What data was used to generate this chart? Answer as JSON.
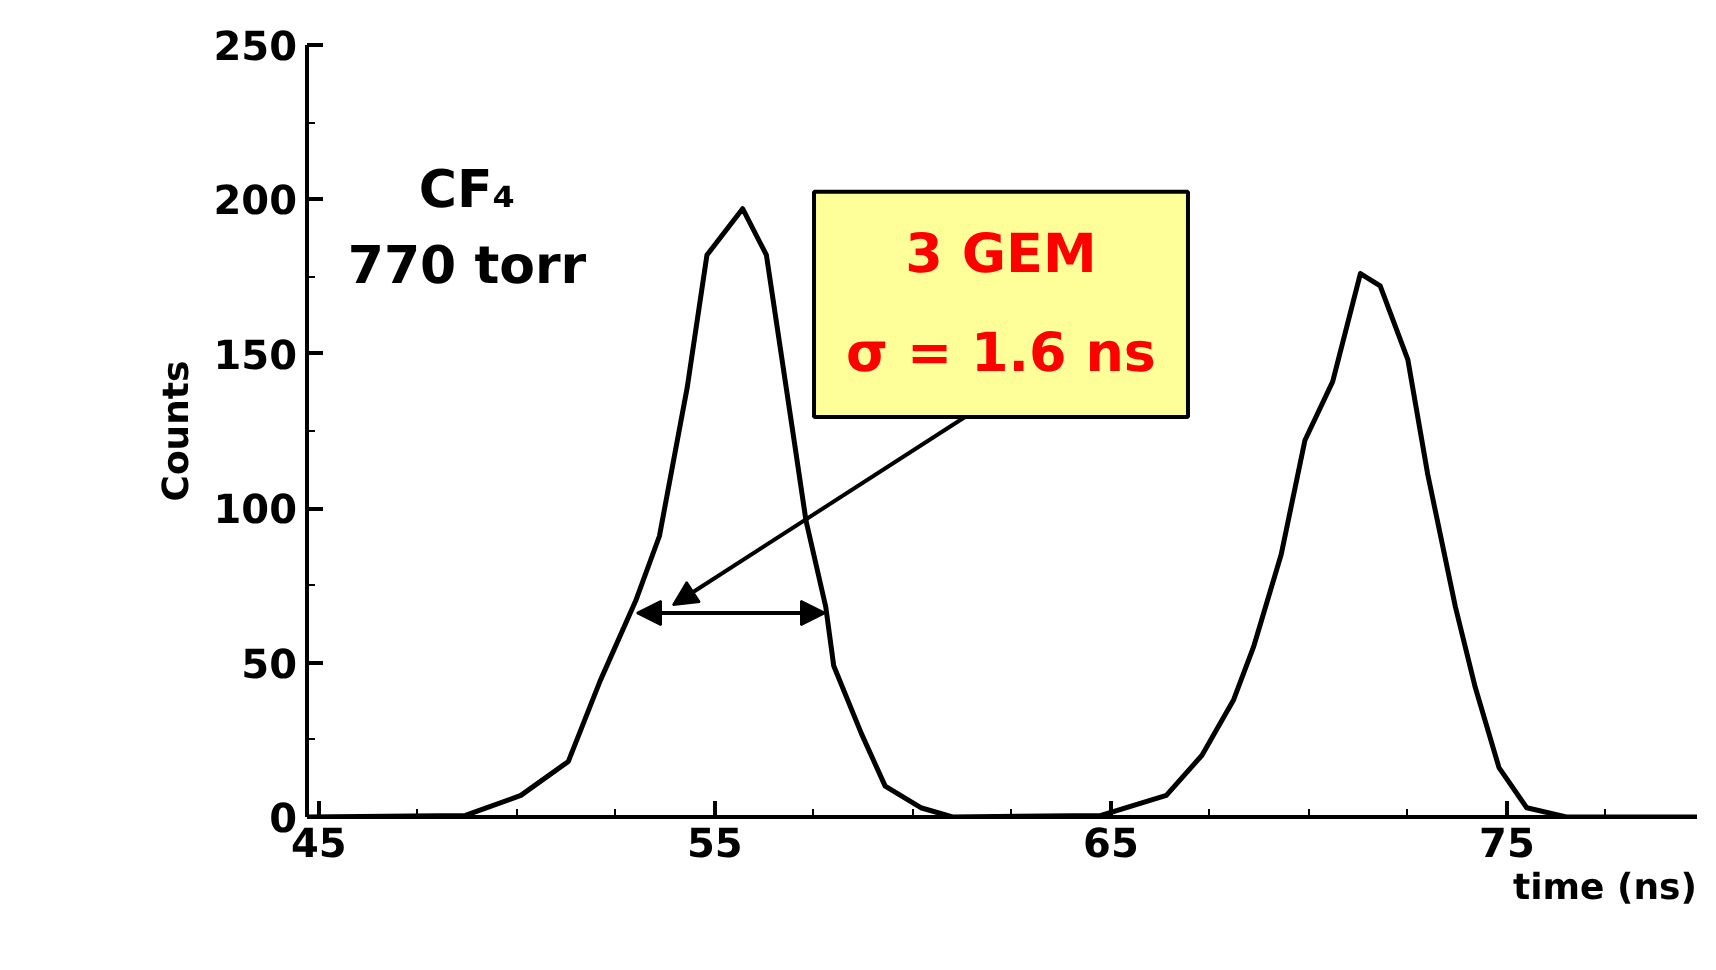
{
  "chart_data": {
    "type": "line",
    "xlabel": "time (ns)",
    "ylabel": "Counts",
    "xlim": [
      44.7,
      79.8
    ],
    "xticks": [
      45,
      55,
      65,
      75
    ],
    "ylim": [
      0,
      250
    ],
    "yticks": [
      0,
      50,
      100,
      150,
      200,
      250
    ],
    "grid": false,
    "series": [
      {
        "color": "#000000",
        "x": [
          44.7,
          48.7,
          50.1,
          51.3,
          52.1,
          53.0,
          53.6,
          54.3,
          54.8,
          55.7,
          56.3,
          57.0,
          57.3,
          57.8,
          58.0,
          58.7,
          59.3,
          60.2,
          61.0,
          64.75,
          66.4,
          67.3,
          68.1,
          68.6,
          69.3,
          69.9,
          70.6,
          71.3,
          71.8,
          72.5,
          73.0,
          73.7,
          74.2,
          74.8,
          75.5,
          76.5,
          79.8
        ],
        "values": [
          0,
          0.5,
          7,
          18,
          44,
          70,
          91,
          139,
          182,
          197,
          182,
          122,
          96,
          68,
          49,
          27,
          10,
          3,
          0,
          0.5,
          7,
          20,
          38,
          55,
          85,
          122,
          141,
          176,
          172,
          148,
          111,
          68,
          42,
          16,
          3,
          0,
          0
        ]
      }
    ],
    "annotations": [
      "CF₄\n770 torr",
      "3 GEM\nσ = 1.6 ns"
    ]
  }
}
